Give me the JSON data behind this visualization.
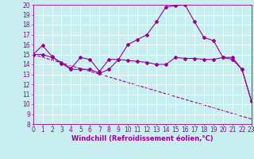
{
  "xlabel": "Windchill (Refroidissement éolien,°C)",
  "background_color": "#c8eef0",
  "grid_color": "#ffffff",
  "line_color": "#990099",
  "x_min": 0,
  "x_max": 23,
  "y_min": 8,
  "y_max": 20,
  "line1_x": [
    0,
    1,
    2,
    3,
    4,
    5,
    6,
    7,
    8,
    9,
    10,
    11,
    12,
    13,
    14,
    15,
    16,
    17,
    18,
    19,
    20,
    21,
    22,
    23
  ],
  "line1_y": [
    15.0,
    15.9,
    14.8,
    14.1,
    13.5,
    13.5,
    13.5,
    13.1,
    13.5,
    14.5,
    16.0,
    16.5,
    17.0,
    18.3,
    19.8,
    19.9,
    20.0,
    18.3,
    16.7,
    16.4,
    14.7,
    14.7,
    13.5,
    10.3
  ],
  "line2_x": [
    0,
    1,
    2,
    3,
    4,
    5,
    6,
    7,
    8,
    9,
    10,
    11,
    12,
    13,
    14,
    15,
    16,
    17,
    18,
    19,
    20,
    21,
    22,
    23
  ],
  "line2_y": [
    15.0,
    15.0,
    14.7,
    14.2,
    13.6,
    14.7,
    14.5,
    13.3,
    14.5,
    14.5,
    14.4,
    14.3,
    14.2,
    14.0,
    14.0,
    14.7,
    14.6,
    14.6,
    14.5,
    14.5,
    14.7,
    14.5,
    13.5,
    10.3
  ],
  "line3_x": [
    0,
    23
  ],
  "line3_y": [
    15.0,
    8.5
  ],
  "tick_fontsize": 5.5,
  "label_fontsize": 6.0
}
